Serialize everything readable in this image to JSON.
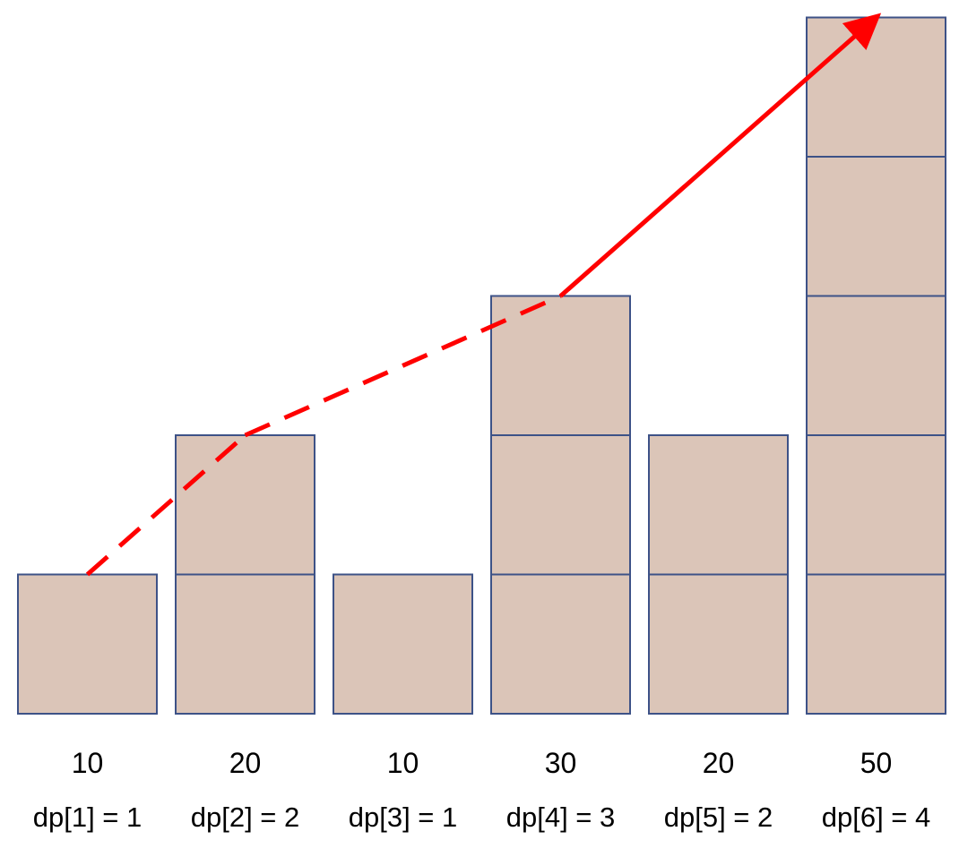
{
  "unit_value": 10,
  "columns": [
    {
      "value": 10,
      "value_label": "10",
      "dp_label": "dp[1] = 1"
    },
    {
      "value": 20,
      "value_label": "20",
      "dp_label": "dp[2] = 2"
    },
    {
      "value": 10,
      "value_label": "10",
      "dp_label": "dp[3] = 1"
    },
    {
      "value": 30,
      "value_label": "30",
      "dp_label": "dp[4] = 3"
    },
    {
      "value": 20,
      "value_label": "20",
      "dp_label": "dp[5] = 2"
    },
    {
      "value": 50,
      "value_label": "50",
      "dp_label": "dp[6] = 4"
    }
  ],
  "path": {
    "color": "#ff0000",
    "segments": [
      {
        "from_column": 1,
        "to_column": 2,
        "style": "dashed"
      },
      {
        "from_column": 2,
        "to_column": 4,
        "style": "dashed"
      },
      {
        "from_column": 4,
        "to_column": 6,
        "style": "solid",
        "arrowhead": true
      }
    ]
  }
}
